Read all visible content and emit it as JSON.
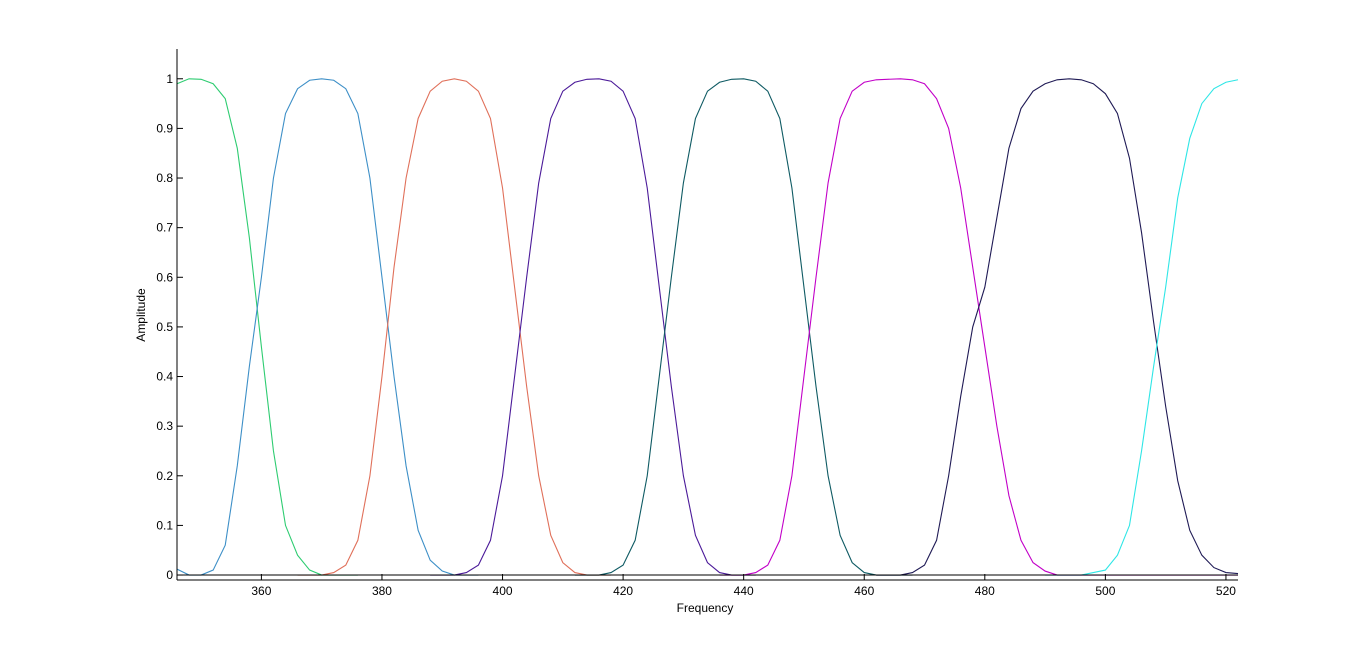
{
  "chart_data": {
    "type": "line",
    "title": "",
    "xlabel": "Frequency",
    "ylabel": "Amplitude",
    "xlim": [
      346,
      522
    ],
    "ylim": [
      -0.01,
      1.06
    ],
    "xticks": [
      360,
      380,
      400,
      420,
      440,
      460,
      480,
      500,
      520
    ],
    "yticks": [
      0,
      0.1,
      0.2,
      0.3,
      0.4,
      0.5,
      0.6,
      0.7,
      0.8,
      0.9,
      1
    ],
    "ytick_labels": [
      "0",
      "0.1",
      "0.2",
      "0.3",
      "0.4",
      "0.5",
      "0.6",
      "0.7",
      "0.8",
      "0.9",
      "1"
    ],
    "grid": false,
    "legend": "none",
    "series": [
      {
        "color": "#2ecc71",
        "points": [
          [
            346,
            0.99
          ],
          [
            348,
            1.0
          ],
          [
            350,
            0.999
          ],
          [
            352,
            0.99
          ],
          [
            354,
            0.96
          ],
          [
            356,
            0.86
          ],
          [
            358,
            0.68
          ],
          [
            360,
            0.46
          ],
          [
            362,
            0.25
          ],
          [
            364,
            0.1
          ],
          [
            366,
            0.04
          ],
          [
            368,
            0.01
          ],
          [
            370,
            0.0
          ],
          [
            372,
            0.0
          ],
          [
            376,
            0.0
          ]
        ]
      },
      {
        "color": "#3d8fc7",
        "points": [
          [
            346,
            0.012
          ],
          [
            348,
            0.0
          ],
          [
            350,
            0.0
          ],
          [
            352,
            0.01
          ],
          [
            354,
            0.06
          ],
          [
            356,
            0.22
          ],
          [
            358,
            0.42
          ],
          [
            360,
            0.6
          ],
          [
            362,
            0.8
          ],
          [
            364,
            0.93
          ],
          [
            366,
            0.98
          ],
          [
            368,
            0.997
          ],
          [
            370,
            1.0
          ],
          [
            372,
            0.997
          ],
          [
            374,
            0.98
          ],
          [
            376,
            0.93
          ],
          [
            378,
            0.8
          ],
          [
            380,
            0.6
          ],
          [
            382,
            0.4
          ],
          [
            384,
            0.22
          ],
          [
            386,
            0.09
          ],
          [
            388,
            0.03
          ],
          [
            390,
            0.008
          ],
          [
            392,
            0.0
          ],
          [
            396,
            0.0
          ]
        ]
      },
      {
        "color": "#e0705a",
        "points": [
          [
            366,
            0.0
          ],
          [
            370,
            0.0
          ],
          [
            372,
            0.005
          ],
          [
            374,
            0.02
          ],
          [
            376,
            0.07
          ],
          [
            378,
            0.2
          ],
          [
            380,
            0.4
          ],
          [
            382,
            0.62
          ],
          [
            384,
            0.8
          ],
          [
            386,
            0.92
          ],
          [
            388,
            0.975
          ],
          [
            390,
            0.995
          ],
          [
            392,
            1.0
          ],
          [
            394,
            0.995
          ],
          [
            396,
            0.975
          ],
          [
            398,
            0.92
          ],
          [
            400,
            0.78
          ],
          [
            402,
            0.58
          ],
          [
            404,
            0.38
          ],
          [
            406,
            0.2
          ],
          [
            408,
            0.08
          ],
          [
            410,
            0.025
          ],
          [
            412,
            0.005
          ],
          [
            414,
            0.0
          ],
          [
            418,
            0.0
          ]
        ]
      },
      {
        "color": "#4b1a99",
        "points": [
          [
            388,
            0.0
          ],
          [
            392,
            0.0
          ],
          [
            394,
            0.005
          ],
          [
            396,
            0.02
          ],
          [
            398,
            0.07
          ],
          [
            400,
            0.2
          ],
          [
            402,
            0.4
          ],
          [
            404,
            0.6
          ],
          [
            406,
            0.79
          ],
          [
            408,
            0.92
          ],
          [
            410,
            0.975
          ],
          [
            412,
            0.993
          ],
          [
            414,
            0.999
          ],
          [
            416,
            1.0
          ],
          [
            418,
            0.995
          ],
          [
            420,
            0.975
          ],
          [
            422,
            0.92
          ],
          [
            424,
            0.78
          ],
          [
            426,
            0.58
          ],
          [
            428,
            0.38
          ],
          [
            430,
            0.2
          ],
          [
            432,
            0.08
          ],
          [
            434,
            0.025
          ],
          [
            436,
            0.005
          ],
          [
            438,
            0.0
          ],
          [
            442,
            0.0
          ]
        ]
      },
      {
        "color": "#0e5a63",
        "points": [
          [
            412,
            0.0
          ],
          [
            416,
            0.0
          ],
          [
            418,
            0.005
          ],
          [
            420,
            0.02
          ],
          [
            422,
            0.07
          ],
          [
            424,
            0.2
          ],
          [
            426,
            0.4
          ],
          [
            428,
            0.6
          ],
          [
            430,
            0.79
          ],
          [
            432,
            0.92
          ],
          [
            434,
            0.975
          ],
          [
            436,
            0.993
          ],
          [
            438,
            0.999
          ],
          [
            440,
            1.0
          ],
          [
            442,
            0.995
          ],
          [
            444,
            0.975
          ],
          [
            446,
            0.92
          ],
          [
            448,
            0.78
          ],
          [
            450,
            0.58
          ],
          [
            452,
            0.38
          ],
          [
            454,
            0.2
          ],
          [
            456,
            0.08
          ],
          [
            458,
            0.025
          ],
          [
            460,
            0.005
          ],
          [
            462,
            0.0
          ],
          [
            468,
            0.0
          ]
        ]
      },
      {
        "color": "#c200c8",
        "points": [
          [
            436,
            0.0
          ],
          [
            440,
            0.0
          ],
          [
            442,
            0.005
          ],
          [
            444,
            0.02
          ],
          [
            446,
            0.07
          ],
          [
            448,
            0.2
          ],
          [
            450,
            0.4
          ],
          [
            452,
            0.6
          ],
          [
            454,
            0.79
          ],
          [
            456,
            0.92
          ],
          [
            458,
            0.975
          ],
          [
            460,
            0.993
          ],
          [
            462,
            0.998
          ],
          [
            466,
            1.0
          ],
          [
            468,
            0.998
          ],
          [
            470,
            0.99
          ],
          [
            472,
            0.96
          ],
          [
            474,
            0.9
          ],
          [
            476,
            0.78
          ],
          [
            478,
            0.62
          ],
          [
            480,
            0.46
          ],
          [
            482,
            0.3
          ],
          [
            484,
            0.16
          ],
          [
            486,
            0.07
          ],
          [
            488,
            0.025
          ],
          [
            490,
            0.008
          ],
          [
            492,
            0.0
          ],
          [
            494,
            0.0
          ],
          [
            500,
            0.0
          ],
          [
            522,
            0.0
          ]
        ]
      },
      {
        "color": "#1f1a55",
        "points": [
          [
            462,
            0.0
          ],
          [
            466,
            0.0
          ],
          [
            468,
            0.005
          ],
          [
            470,
            0.02
          ],
          [
            472,
            0.07
          ],
          [
            474,
            0.2
          ],
          [
            476,
            0.36
          ],
          [
            478,
            0.5
          ],
          [
            480,
            0.58
          ],
          [
            482,
            0.72
          ],
          [
            484,
            0.86
          ],
          [
            486,
            0.94
          ],
          [
            488,
            0.975
          ],
          [
            490,
            0.99
          ],
          [
            492,
            0.998
          ],
          [
            494,
            1.0
          ],
          [
            496,
            0.998
          ],
          [
            498,
            0.99
          ],
          [
            500,
            0.97
          ],
          [
            502,
            0.93
          ],
          [
            504,
            0.84
          ],
          [
            506,
            0.69
          ],
          [
            508,
            0.51
          ],
          [
            510,
            0.34
          ],
          [
            512,
            0.19
          ],
          [
            514,
            0.09
          ],
          [
            516,
            0.04
          ],
          [
            518,
            0.015
          ],
          [
            520,
            0.005
          ],
          [
            522,
            0.003
          ]
        ]
      },
      {
        "color": "#2ee6e6",
        "points": [
          [
            490,
            0.0
          ],
          [
            496,
            0.0
          ],
          [
            498,
            0.005
          ],
          [
            500,
            0.01
          ],
          [
            502,
            0.04
          ],
          [
            504,
            0.1
          ],
          [
            506,
            0.25
          ],
          [
            508,
            0.42
          ],
          [
            510,
            0.58
          ],
          [
            512,
            0.76
          ],
          [
            514,
            0.88
          ],
          [
            516,
            0.95
          ],
          [
            518,
            0.98
          ],
          [
            520,
            0.993
          ],
          [
            522,
            0.998
          ]
        ]
      }
    ]
  }
}
